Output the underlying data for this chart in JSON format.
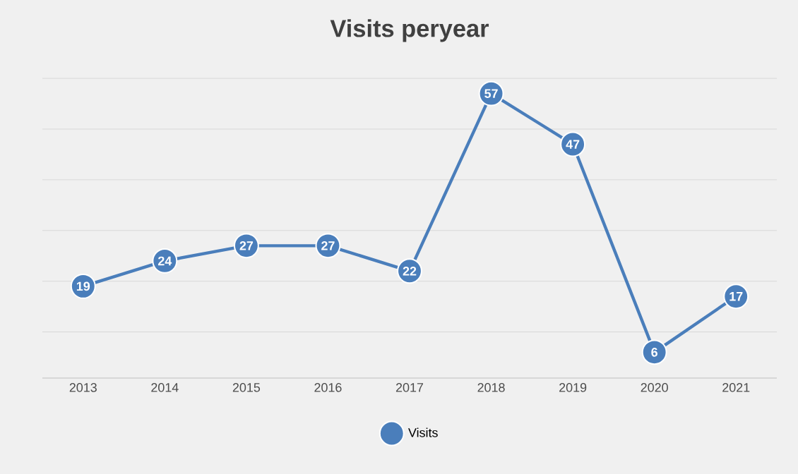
{
  "chart_data": {
    "type": "line",
    "title": "Visits peryear",
    "categories": [
      "2013",
      "2014",
      "2015",
      "2016",
      "2017",
      "2018",
      "2019",
      "2020",
      "2021"
    ],
    "series": [
      {
        "name": "Visits",
        "color": "#4a7ebb",
        "values": [
          19,
          24,
          27,
          27,
          22,
          57,
          47,
          6,
          17
        ]
      }
    ],
    "tick_labels": "x",
    "grid": "y",
    "legend": "bottom",
    "marker": "circle",
    "line_style": "solid",
    "data_labels": true
  }
}
